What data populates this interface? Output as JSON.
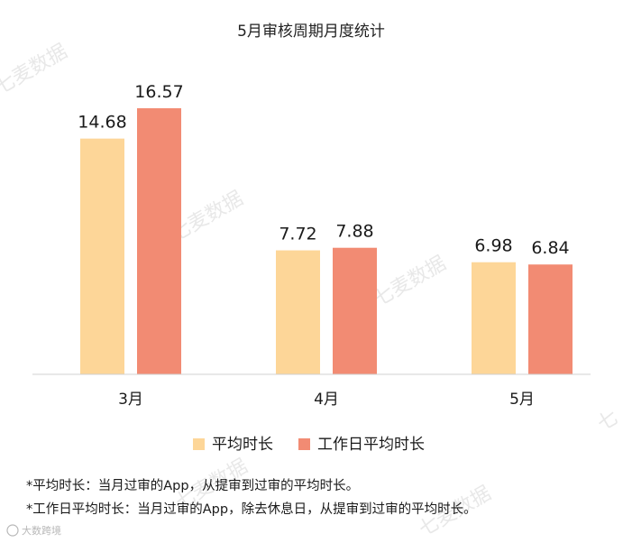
{
  "chart_data": {
    "type": "bar",
    "title": "5月审核周期月度统计",
    "categories": [
      "3月",
      "4月",
      "5月"
    ],
    "series": [
      {
        "name": "平均时长",
        "values": [
          14.68,
          7.72,
          6.98
        ],
        "color": "#fdd698"
      },
      {
        "name": "工作日平均时长",
        "values": [
          16.57,
          7.88,
          6.84
        ],
        "color": "#f28b73"
      }
    ],
    "ylim": [
      0,
      16.57
    ],
    "grid": false,
    "legend_position": "bottom"
  },
  "notes": [
    "*平均时长：当月过审的App，从提审到过审的平均时长。",
    "*工作日平均时长：当月过审的App，除去休息日，从提审到过审的平均时长。"
  ],
  "watermarks": [
    "七麦数据",
    "七麦数据",
    "七麦数据",
    "七麦数据",
    "七麦数据",
    "七"
  ],
  "source_label": "大数跨境"
}
